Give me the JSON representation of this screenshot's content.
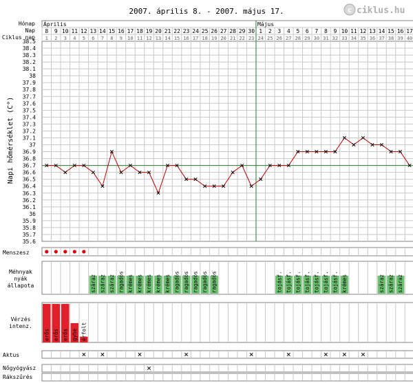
{
  "title": "2007. április 8. - 2007. május 17.",
  "logo": {
    "text": "ciklus.hu",
    "prefix": "c"
  },
  "row_labels": {
    "month": "Hónap",
    "day": "Nap",
    "cycle_day": "Ciklus nap",
    "temperature_axis": "Napi hőmérséklet (C°)",
    "menstruation": "Menszesz",
    "mucus": "Méhnyak nyák állapota",
    "bleeding": "Vérzés intenz.",
    "intercourse": "Aktus",
    "gynecologist": "Nőgyógyász",
    "screening": "Rákszűrés"
  },
  "chart_data": {
    "type": "line",
    "title": "2007. április 8. - 2007. május 17.",
    "ylabel": "Napi hőmérséklet (C°)",
    "ylim": [
      35.6,
      38.5
    ],
    "ytick_step": 0.1,
    "grid": true,
    "months": [
      {
        "label": "Április",
        "start_index": 0
      },
      {
        "label": "Május",
        "start_index": 23
      }
    ],
    "days": [
      "8",
      "9",
      "10",
      "11",
      "12",
      "13",
      "14",
      "15",
      "16",
      "17",
      "18",
      "19",
      "20",
      "21",
      "22",
      "23",
      "24",
      "25",
      "26",
      "27",
      "28",
      "29",
      "30",
      "1",
      "2",
      "3",
      "4",
      "5",
      "6",
      "7",
      "8",
      "9",
      "10",
      "11",
      "12",
      "13",
      "14",
      "15",
      "16",
      "17"
    ],
    "cycle_days": [
      "1",
      "2",
      "3",
      "4",
      "5",
      "6",
      "7",
      "8",
      "9",
      "10",
      "11",
      "12",
      "13",
      "14",
      "15",
      "16",
      "17",
      "18",
      "19",
      "20",
      "21",
      "22",
      "23",
      "24",
      "25",
      "26",
      "27",
      "28",
      "29",
      "30",
      "31",
      "32",
      "33",
      "34",
      "35",
      "36",
      "37",
      "38",
      "39",
      "40"
    ],
    "temperatures": [
      36.7,
      36.7,
      36.6,
      36.7,
      36.7,
      36.6,
      36.4,
      36.9,
      36.6,
      36.7,
      36.6,
      36.6,
      36.3,
      36.7,
      36.7,
      36.5,
      36.5,
      36.4,
      36.4,
      36.4,
      36.6,
      36.7,
      36.4,
      36.5,
      36.7,
      36.7,
      36.7,
      36.9,
      36.9,
      36.9,
      36.9,
      36.9,
      37.1,
      37.0,
      37.1,
      37.0,
      37.0,
      36.9,
      36.9,
      36.7
    ],
    "coverline": 36.7,
    "ovulation_marker_index": 23,
    "menstruation_days": [
      0,
      1,
      2,
      3,
      4
    ],
    "mucus": [
      {
        "index": 5,
        "text": "száraz"
      },
      {
        "index": 6,
        "text": "száraz"
      },
      {
        "index": 7,
        "text": "száraz"
      },
      {
        "index": 8,
        "text": "ragadós"
      },
      {
        "index": 9,
        "text": "krémes"
      },
      {
        "index": 10,
        "text": "krémes"
      },
      {
        "index": 11,
        "text": "krémes"
      },
      {
        "index": 12,
        "text": "krémes"
      },
      {
        "index": 13,
        "text": "krémes"
      },
      {
        "index": 14,
        "text": "ragadós"
      },
      {
        "index": 15,
        "text": "ragadós"
      },
      {
        "index": 16,
        "text": "ragadós"
      },
      {
        "index": 17,
        "text": "ragadós"
      },
      {
        "index": 18,
        "text": "ragadós"
      },
      {
        "index": 25,
        "text": "tojásf."
      },
      {
        "index": 26,
        "text": "tojásf."
      },
      {
        "index": 27,
        "text": "tojásf."
      },
      {
        "index": 28,
        "text": "tojásf."
      },
      {
        "index": 29,
        "text": "tojásf."
      },
      {
        "index": 30,
        "text": "tojásf."
      },
      {
        "index": 31,
        "text": "tojásf."
      },
      {
        "index": 32,
        "text": "krémes"
      },
      {
        "index": 36,
        "text": "száraz"
      },
      {
        "index": 37,
        "text": "száraz"
      },
      {
        "index": 38,
        "text": "száraz"
      }
    ],
    "bleeding": [
      {
        "index": 0,
        "text": "erős",
        "level": 1.0
      },
      {
        "index": 1,
        "text": "erős",
        "level": 1.0
      },
      {
        "index": 2,
        "text": "erős",
        "level": 1.0
      },
      {
        "index": 3,
        "text": "gyhe",
        "level": 0.5
      },
      {
        "index": 4,
        "text": "érfolt",
        "level": 0.15
      }
    ],
    "intercourse_days": [
      4,
      6,
      10,
      15,
      22,
      26,
      30,
      32,
      34
    ],
    "gynecologist_days": [
      11
    ],
    "screening_days": []
  },
  "colors": {
    "line": "#c00000",
    "marker": "#000000",
    "coverline": "#2e7d32",
    "grid": "#c8c8c8",
    "frame": "#808080",
    "mucus_fill": "#6cc070",
    "bleeding_fill": "#e0202a",
    "menstruation_dot": "#e00000",
    "logo": "#b0b0b0"
  }
}
